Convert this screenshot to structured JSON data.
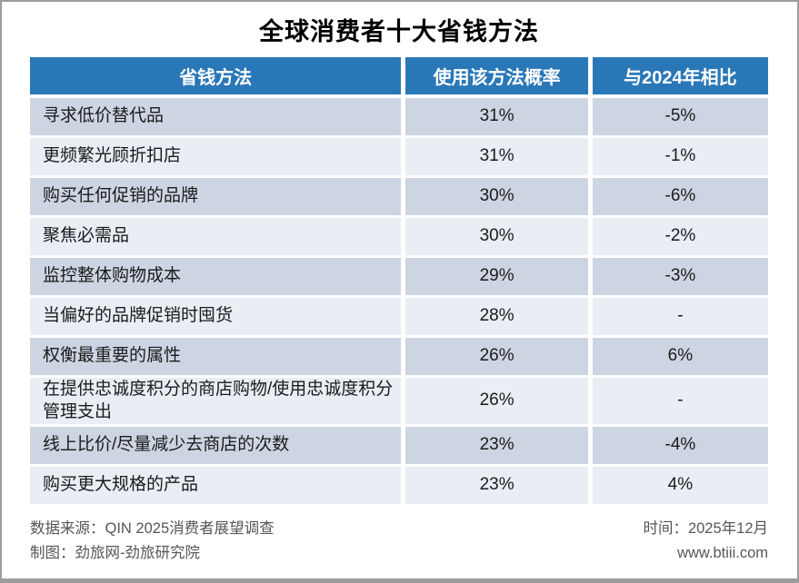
{
  "title": "全球消费者十大省钱方法",
  "table": {
    "headers": [
      "省钱方法",
      "使用该方法概率",
      "与2024年相比"
    ],
    "rows": [
      {
        "method": "寻求低价替代品",
        "probability": "31%",
        "vs_2024": "-5%"
      },
      {
        "method": "更频繁光顾折扣店",
        "probability": "31%",
        "vs_2024": "-1%"
      },
      {
        "method": "购买任何促销的品牌",
        "probability": "30%",
        "vs_2024": "-6%"
      },
      {
        "method": "聚焦必需品",
        "probability": "30%",
        "vs_2024": "-2%"
      },
      {
        "method": "监控整体购物成本",
        "probability": "29%",
        "vs_2024": "-3%"
      },
      {
        "method": "当偏好的品牌促销时囤货",
        "probability": "28%",
        "vs_2024": "-"
      },
      {
        "method": "权衡最重要的属性",
        "probability": "26%",
        "vs_2024": "6%"
      },
      {
        "method": "在提供忠诚度积分的商店购物/使用忠诚度积分管理支出",
        "probability": "26%",
        "vs_2024": "-"
      },
      {
        "method": "线上比价/尽量减少去商店的次数",
        "probability": "23%",
        "vs_2024": "-4%"
      },
      {
        "method": "购买更大规格的产品",
        "probability": "23%",
        "vs_2024": "4%"
      }
    ]
  },
  "footer": {
    "source_label": "数据来源：QIN 2025消费者展望调查",
    "credit_label": "制图：劲旅网-劲旅研究院",
    "time_label": "时间：2025年12月",
    "website": "www.btiii.com"
  },
  "colors": {
    "header_bg": "#2A77B8",
    "row_odd_bg": "#CDD5E3",
    "row_even_bg": "#E9EDF4",
    "header_text": "#FFFFFF",
    "body_text": "#1B1B1B",
    "footer_text": "#565656",
    "page_border": "#9D9D9D"
  },
  "chart_data": {
    "type": "table",
    "title": "全球消费者十大省钱方法",
    "columns": [
      "省钱方法",
      "使用该方法概率",
      "与2024年相比"
    ],
    "rows": [
      [
        "寻求低价替代品",
        "31%",
        "-5%"
      ],
      [
        "更频繁光顾折扣店",
        "31%",
        "-1%"
      ],
      [
        "购买任何促销的品牌",
        "30%",
        "-6%"
      ],
      [
        "聚焦必需品",
        "30%",
        "-2%"
      ],
      [
        "监控整体购物成本",
        "29%",
        "-3%"
      ],
      [
        "当偏好的品牌促销时囤货",
        "28%",
        "-"
      ],
      [
        "权衡最重要的属性",
        "26%",
        "6%"
      ],
      [
        "在提供忠诚度积分的商店购物/使用忠诚度积分管理支出",
        "26%",
        "-"
      ],
      [
        "线上比价/尽量减少去商店的次数",
        "23%",
        "-4%"
      ],
      [
        "购买更大规格的产品",
        "23%",
        "4%"
      ]
    ],
    "probability_values_pct": [
      31,
      31,
      30,
      30,
      29,
      28,
      26,
      26,
      23,
      23
    ],
    "vs_2024_change_pct": [
      -5,
      -1,
      -6,
      -2,
      -3,
      null,
      6,
      null,
      -4,
      4
    ]
  }
}
